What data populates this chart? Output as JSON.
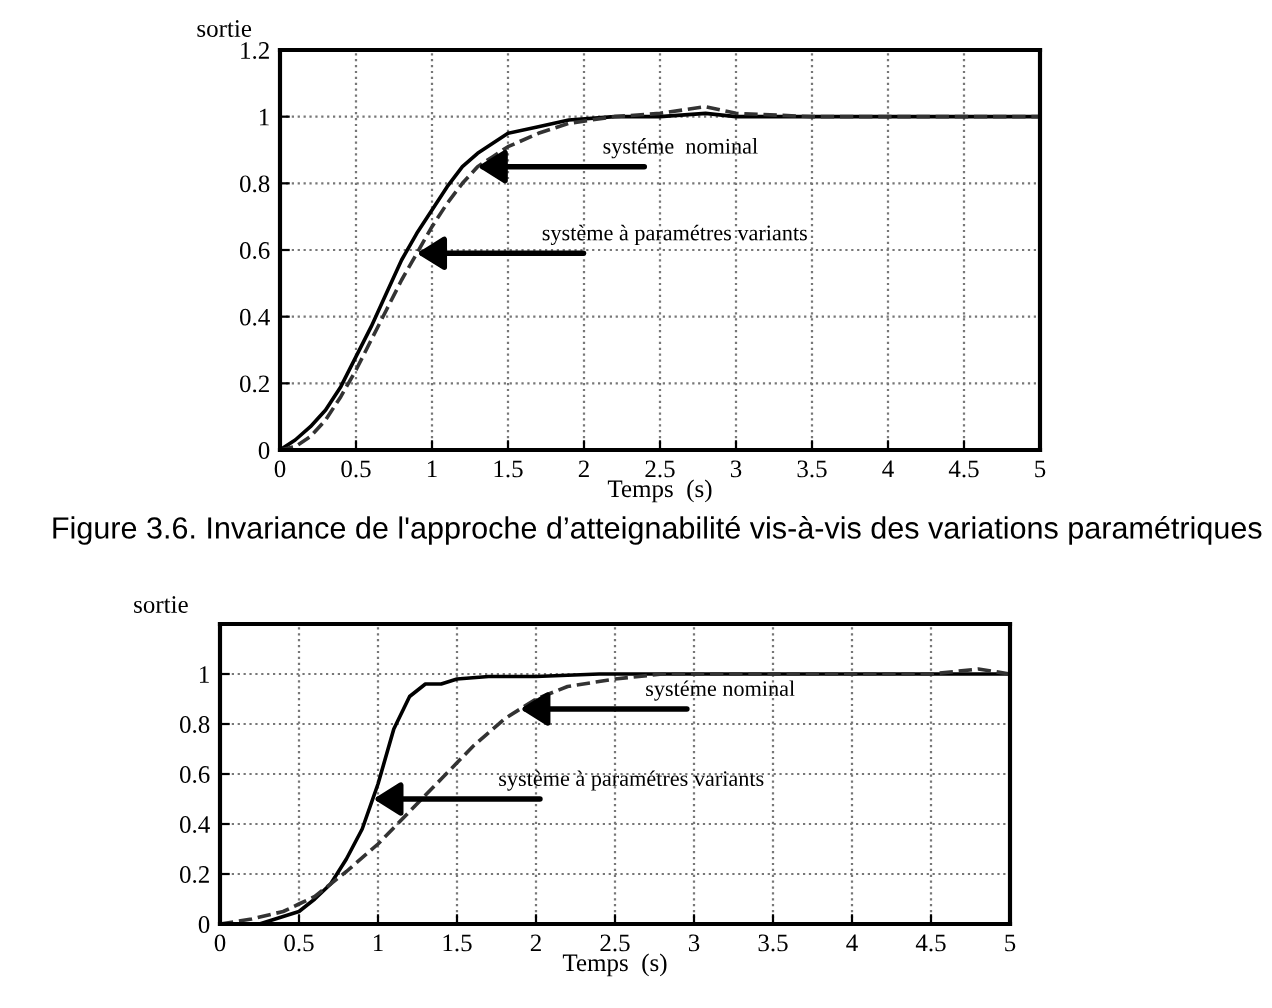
{
  "chart_data": [
    {
      "type": "line",
      "xlabel": "Temps  (s)",
      "ylabel": "sortie",
      "xlim": [
        0,
        5
      ],
      "ylim": [
        0,
        1.2
      ],
      "xticks": [
        0,
        0.5,
        1,
        1.5,
        2,
        2.5,
        3,
        3.5,
        4,
        4.5,
        5
      ],
      "yticks": [
        0,
        0.2,
        0.4,
        0.6,
        0.8,
        1,
        1.2
      ],
      "grid": true,
      "legend": false,
      "series": [
        {
          "color": "#000000",
          "line_style": "solid",
          "x": [
            0,
            0.1,
            0.2,
            0.3,
            0.4,
            0.5,
            0.6,
            0.7,
            0.8,
            0.9,
            1.0,
            1.1,
            1.2,
            1.3,
            1.4,
            1.5,
            1.7,
            1.9,
            2.2,
            2.5,
            2.8,
            3.0,
            4,
            5
          ],
          "values": [
            0,
            0.03,
            0.07,
            0.12,
            0.19,
            0.28,
            0.37,
            0.47,
            0.57,
            0.65,
            0.72,
            0.79,
            0.85,
            0.89,
            0.92,
            0.95,
            0.97,
            0.99,
            1.0,
            1.0,
            1.01,
            1.0,
            1.0,
            1.0
          ]
        },
        {
          "color": "#333333",
          "line_style": "dashed",
          "x": [
            0,
            0.1,
            0.2,
            0.3,
            0.4,
            0.5,
            0.6,
            0.7,
            0.8,
            0.9,
            1.0,
            1.1,
            1.2,
            1.3,
            1.4,
            1.5,
            1.7,
            1.9,
            2.2,
            2.5,
            2.8,
            3.0,
            3.5,
            5
          ],
          "values": [
            0,
            0.01,
            0.04,
            0.09,
            0.16,
            0.24,
            0.33,
            0.42,
            0.51,
            0.59,
            0.67,
            0.74,
            0.8,
            0.85,
            0.88,
            0.91,
            0.95,
            0.98,
            1.0,
            1.01,
            1.03,
            1.01,
            1.0,
            1.0
          ]
        }
      ],
      "annotations": [
        {
          "text": "systéme  nominal",
          "x": 1.3,
          "y": 0.85
        },
        {
          "text": "système à paramétres variants",
          "x": 0.9,
          "y": 0.59
        },
        "Figure 3.6. Invariance de l'approche d’atteignabilité vis-à-vis des variations paramétriques"
      ]
    },
    {
      "type": "line",
      "xlabel": "Temps  (s)",
      "ylabel": "sortie",
      "xlim": [
        0,
        5
      ],
      "ylim": [
        0,
        1.2
      ],
      "xticks": [
        0,
        0.5,
        1,
        1.5,
        2,
        2.5,
        3,
        3.5,
        4,
        4.5,
        5
      ],
      "yticks": [
        0,
        0.2,
        0.4,
        0.6,
        0.8,
        1
      ],
      "grid": true,
      "legend": false,
      "series": [
        {
          "color": "#000000",
          "line_style": "solid",
          "x": [
            0,
            0.25,
            0.4,
            0.5,
            0.6,
            0.7,
            0.8,
            0.9,
            1.0,
            1.1,
            1.2,
            1.3,
            1.4,
            1.5,
            1.7,
            2.0,
            2.4,
            3,
            5
          ],
          "values": [
            0,
            0,
            0.03,
            0.05,
            0.1,
            0.16,
            0.26,
            0.38,
            0.56,
            0.78,
            0.91,
            0.96,
            0.96,
            0.98,
            0.99,
            0.99,
            1.0,
            1.0,
            1.0
          ]
        },
        {
          "color": "#333333",
          "line_style": "dashed",
          "x": [
            0,
            0.2,
            0.4,
            0.5,
            0.6,
            0.7,
            0.8,
            1.0,
            1.2,
            1.4,
            1.6,
            1.8,
            2.0,
            2.2,
            2.5,
            2.8,
            3.5,
            4.5,
            4.8,
            5
          ],
          "values": [
            0,
            0.02,
            0.05,
            0.08,
            0.11,
            0.16,
            0.21,
            0.32,
            0.45,
            0.58,
            0.71,
            0.82,
            0.9,
            0.95,
            0.98,
            1.0,
            1.0,
            1.0,
            1.02,
            1.0
          ]
        }
      ],
      "annotations": [
        {
          "text": "systéme nominal",
          "x": 1.9,
          "y": 0.86
        },
        {
          "text": "système à paramétres variants",
          "x": 0.97,
          "y": 0.5
        }
      ]
    }
  ]
}
